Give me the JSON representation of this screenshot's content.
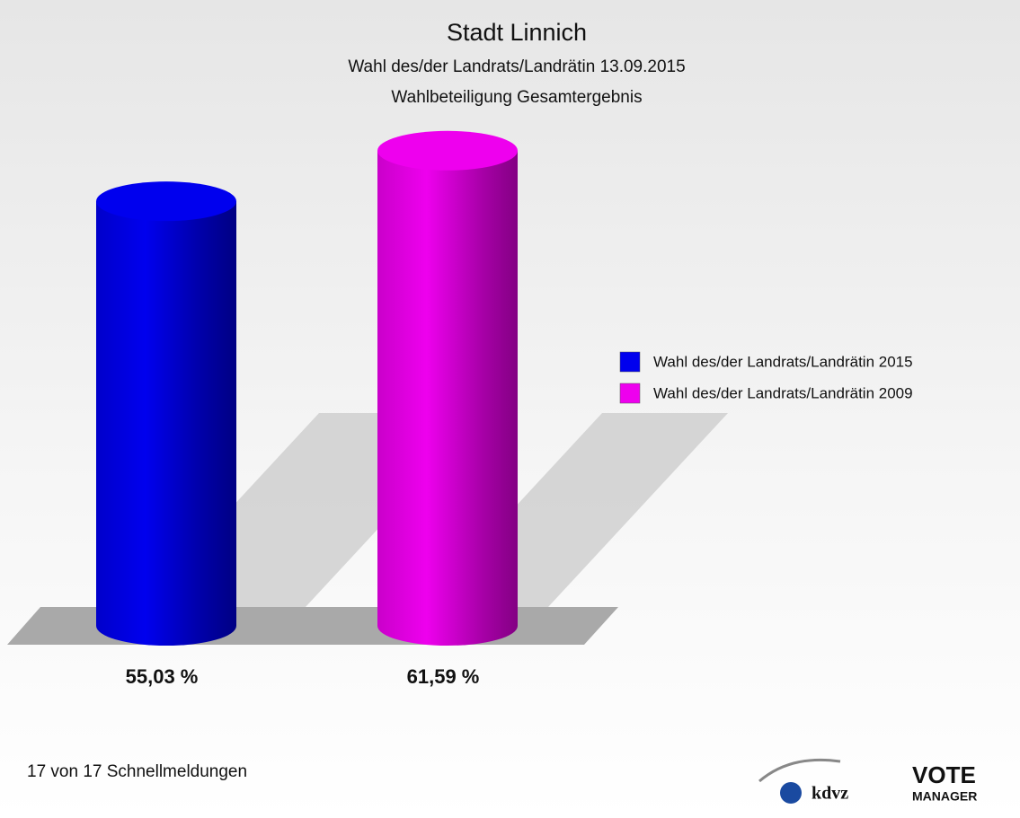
{
  "chart_data": {
    "type": "bar",
    "title": "Stadt Linnich",
    "subtitles": [
      "Wahl des/der Landrats/Landrätin 13.09.2015",
      "Wahlbeteiligung Gesamtergebnis"
    ],
    "categories": [
      null
    ],
    "series": [
      {
        "name": "Wahl des/der Landrats/Landrätin 2015",
        "color": "#0000ee",
        "values": [
          55.03
        ],
        "value_labels": [
          "55,03 %"
        ]
      },
      {
        "name": "Wahl des/der Landrats/Landrätin 2009",
        "color": "#ee00ee",
        "values": [
          61.59
        ],
        "value_labels": [
          "61,59 %"
        ]
      }
    ],
    "ylim": [
      0,
      80
    ],
    "footer": "17 von 17 Schnellmeldungen",
    "logo": {
      "text": "kdvz",
      "brand": "VOTE",
      "brand_sub": "MANAGER"
    }
  }
}
